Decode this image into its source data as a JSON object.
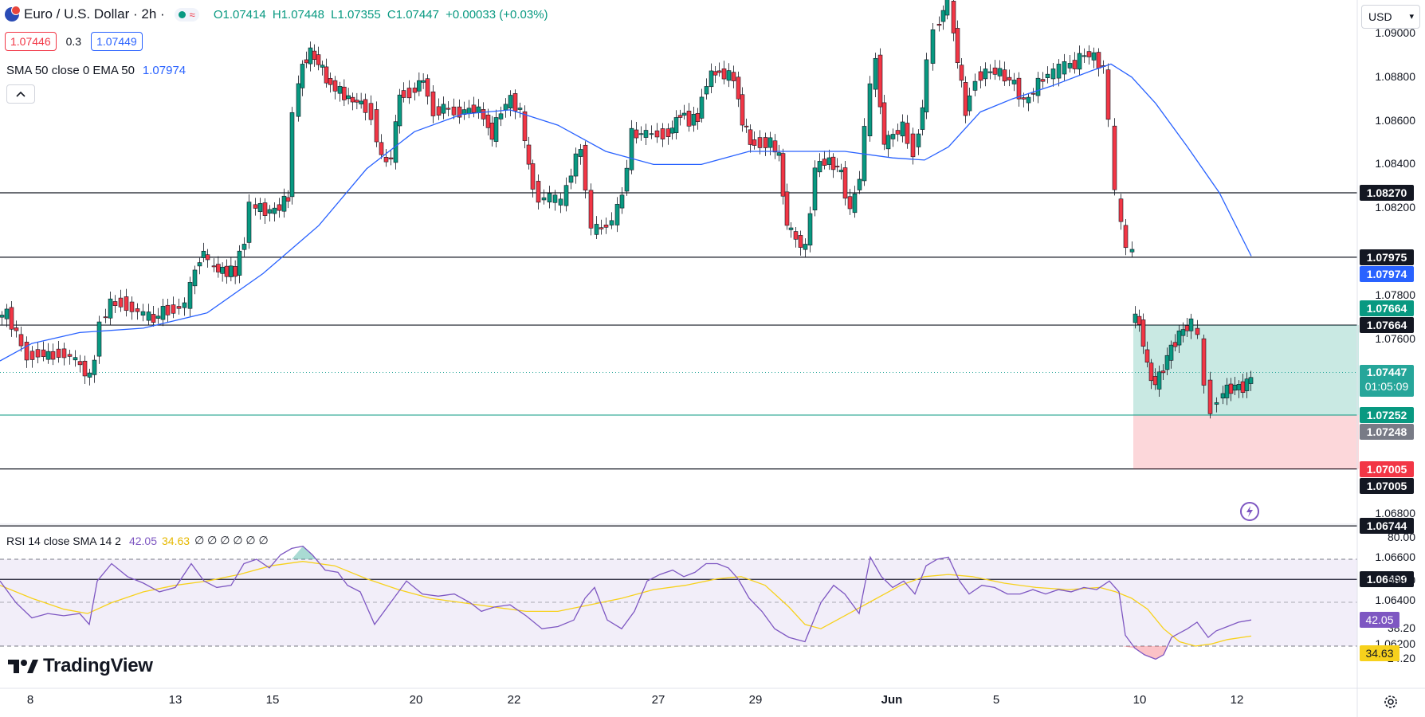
{
  "header": {
    "symbol_title": "Euro / U.S. Dollar · 2h ·",
    "ohlc": {
      "open": "O1.07414",
      "high": "H1.07448",
      "low": "L1.07355",
      "close": "C1.07447",
      "change": "+0.00033 (+0.03%)"
    },
    "bid": "1.07446",
    "spread": "0.3",
    "ask": "1.07449",
    "currency": "USD",
    "collapse_icon": "chevron-up-icon"
  },
  "indicators": {
    "ma_label": "SMA 50 close 0 EMA 50",
    "ma_value": "1.07974",
    "rsi_label": "RSI 14 close SMA 14 2",
    "rsi_value": "42.05",
    "rsi_sma_value": "34.63",
    "rsi_extra": "∅ ∅ ∅ ∅ ∅ ∅"
  },
  "price_axis": [
    "1.09000",
    "1.08800",
    "1.08600",
    "1.08400",
    "1.08200",
    "1.07800",
    "1.07600",
    "1.06800",
    "1.06600",
    "1.06400",
    "1.06200"
  ],
  "price_tags": [
    {
      "price": "1.08270",
      "kind": "line"
    },
    {
      "price": "1.07975",
      "kind": "line"
    },
    {
      "price": "1.07974",
      "kind": "ma"
    },
    {
      "price": "1.07664",
      "kind": "target"
    },
    {
      "price": "1.07664",
      "kind": "line"
    },
    {
      "price": "1.07447",
      "kind": "last",
      "countdown": "01:05:09"
    },
    {
      "price": "1.07252",
      "kind": "target"
    },
    {
      "price": "1.07248",
      "kind": "gray"
    },
    {
      "price": "1.07005",
      "kind": "stop"
    },
    {
      "price": "1.07005",
      "kind": "line"
    },
    {
      "price": "1.06744",
      "kind": "line"
    },
    {
      "price": "1.06499",
      "kind": "line"
    }
  ],
  "rsi_axis": [
    "80.00",
    "60.00",
    "38.20",
    "24.20"
  ],
  "date_axis": [
    "8",
    "13",
    "15",
    "20",
    "22",
    "27",
    "29",
    "Jun",
    "5",
    "10",
    "12"
  ],
  "brand": "TradingView",
  "colors": {
    "up": "#089981",
    "down": "#f23645",
    "ma": "#2962ff",
    "rsi": "#7e57c2",
    "rsi_sma": "#f7d11c"
  }
}
